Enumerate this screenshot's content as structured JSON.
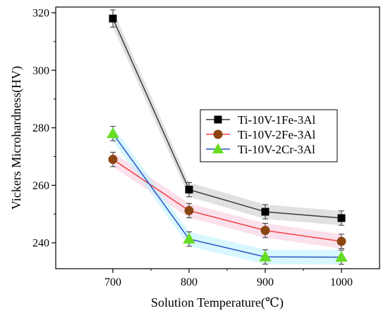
{
  "chart_data": {
    "type": "line",
    "xlabel": "Solution Temperature(℃)",
    "ylabel": "Vickers Microhardness(HV)",
    "xlim": [
      625,
      1050
    ],
    "ylim": [
      231,
      322
    ],
    "x_ticks": [
      700,
      800,
      900,
      1000
    ],
    "y_ticks": [
      240,
      260,
      280,
      300,
      320
    ],
    "x": [
      700,
      800,
      900,
      1000
    ],
    "grid": false,
    "legend_position": "center-right",
    "series": [
      {
        "name": "Ti-10V-1Fe-3Al",
        "values": [
          318,
          258.5,
          250.8,
          248.6
        ],
        "errors": [
          3,
          2.5,
          2.5,
          2.5
        ],
        "marker": "square",
        "color": "#3a3a3a",
        "marker_color": "#000000",
        "band_color": "#c8c8c8"
      },
      {
        "name": "Ti-10V-2Fe-3Al",
        "values": [
          269,
          251.2,
          244.3,
          240.5
        ],
        "errors": [
          2.5,
          2.5,
          2.5,
          2.5
        ],
        "marker": "circle",
        "color": "#f04040",
        "marker_color": "#8b4513",
        "band_color": "#f7c8dc"
      },
      {
        "name": "Ti-10V-2Cr-3Al",
        "values": [
          278,
          241.3,
          235.1,
          235
        ],
        "errors": [
          2.5,
          2.5,
          2.5,
          2.5
        ],
        "marker": "triangle",
        "color": "#2a55c8",
        "marker_color": "#66dd22",
        "band_color": "#b8f0ff"
      }
    ]
  }
}
